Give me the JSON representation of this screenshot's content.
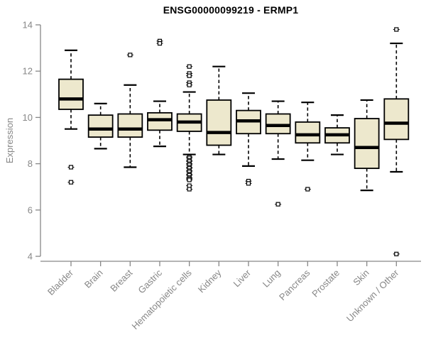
{
  "chart_data": {
    "type": "boxplot",
    "title": "ENSG00000099219 - ERMP1",
    "ylabel": "Expression",
    "xlabel": "",
    "ylim": [
      4,
      14
    ],
    "yticks": [
      4,
      6,
      8,
      10,
      12,
      14
    ],
    "grid": false,
    "legend": "none",
    "categories": [
      "Bladder",
      "Brain",
      "Breast",
      "Gastric",
      "Hematopoietic cells",
      "Kidney",
      "Liver",
      "Lung",
      "Pancreas",
      "Prostate",
      "Skin",
      "Unknown / Other"
    ],
    "series": [
      {
        "name": "Bladder",
        "whisker_low": 9.5,
        "q1": 10.35,
        "median": 10.8,
        "q3": 11.65,
        "whisker_high": 12.9,
        "outliers": [
          7.85,
          7.2
        ]
      },
      {
        "name": "Brain",
        "whisker_low": 8.65,
        "q1": 9.15,
        "median": 9.5,
        "q3": 10.1,
        "whisker_high": 10.6,
        "outliers": []
      },
      {
        "name": "Breast",
        "whisker_low": 7.85,
        "q1": 9.15,
        "median": 9.5,
        "q3": 10.15,
        "whisker_high": 11.4,
        "outliers": [
          12.7
        ]
      },
      {
        "name": "Gastric",
        "whisker_low": 8.75,
        "q1": 9.45,
        "median": 9.9,
        "q3": 10.2,
        "whisker_high": 10.7,
        "outliers": [
          13.3,
          13.2
        ]
      },
      {
        "name": "Hematopoietic cells",
        "whisker_low": 8.4,
        "q1": 9.4,
        "median": 9.8,
        "q3": 10.15,
        "whisker_high": 11.1,
        "outliers": [
          12.2,
          11.9,
          11.8,
          11.5,
          11.4,
          8.3,
          8.25,
          8.15,
          8.1,
          8.0,
          7.95,
          7.85,
          7.8,
          7.7,
          7.65,
          7.55,
          7.5,
          7.4,
          7.35,
          7.3,
          7.05,
          6.9
        ]
      },
      {
        "name": "Kidney",
        "whisker_low": 8.4,
        "q1": 8.8,
        "median": 9.35,
        "q3": 10.75,
        "whisker_high": 12.2,
        "outliers": []
      },
      {
        "name": "Liver",
        "whisker_low": 7.9,
        "q1": 9.3,
        "median": 9.85,
        "q3": 10.3,
        "whisker_high": 11.05,
        "outliers": [
          7.25,
          7.15
        ]
      },
      {
        "name": "Lung",
        "whisker_low": 8.2,
        "q1": 9.3,
        "median": 9.65,
        "q3": 10.15,
        "whisker_high": 10.7,
        "outliers": [
          6.25
        ]
      },
      {
        "name": "Pancreas",
        "whisker_low": 8.15,
        "q1": 8.9,
        "median": 9.25,
        "q3": 9.8,
        "whisker_high": 10.65,
        "outliers": [
          6.9
        ]
      },
      {
        "name": "Prostate",
        "whisker_low": 8.4,
        "q1": 8.9,
        "median": 9.25,
        "q3": 9.55,
        "whisker_high": 10.1,
        "outliers": []
      },
      {
        "name": "Skin",
        "whisker_low": 6.85,
        "q1": 7.8,
        "median": 8.7,
        "q3": 9.95,
        "whisker_high": 10.75,
        "outliers": []
      },
      {
        "name": "Unknown / Other",
        "whisker_low": 7.65,
        "q1": 9.05,
        "median": 9.75,
        "q3": 10.8,
        "whisker_high": 13.2,
        "outliers": [
          13.8,
          4.1
        ]
      }
    ],
    "style": {
      "box_fill": "#ede8cd",
      "box_stroke": "#000000",
      "median_color": "#000000",
      "axis_color": "#878787",
      "tick_label_color": "#878787",
      "title_color": "#000000"
    }
  }
}
